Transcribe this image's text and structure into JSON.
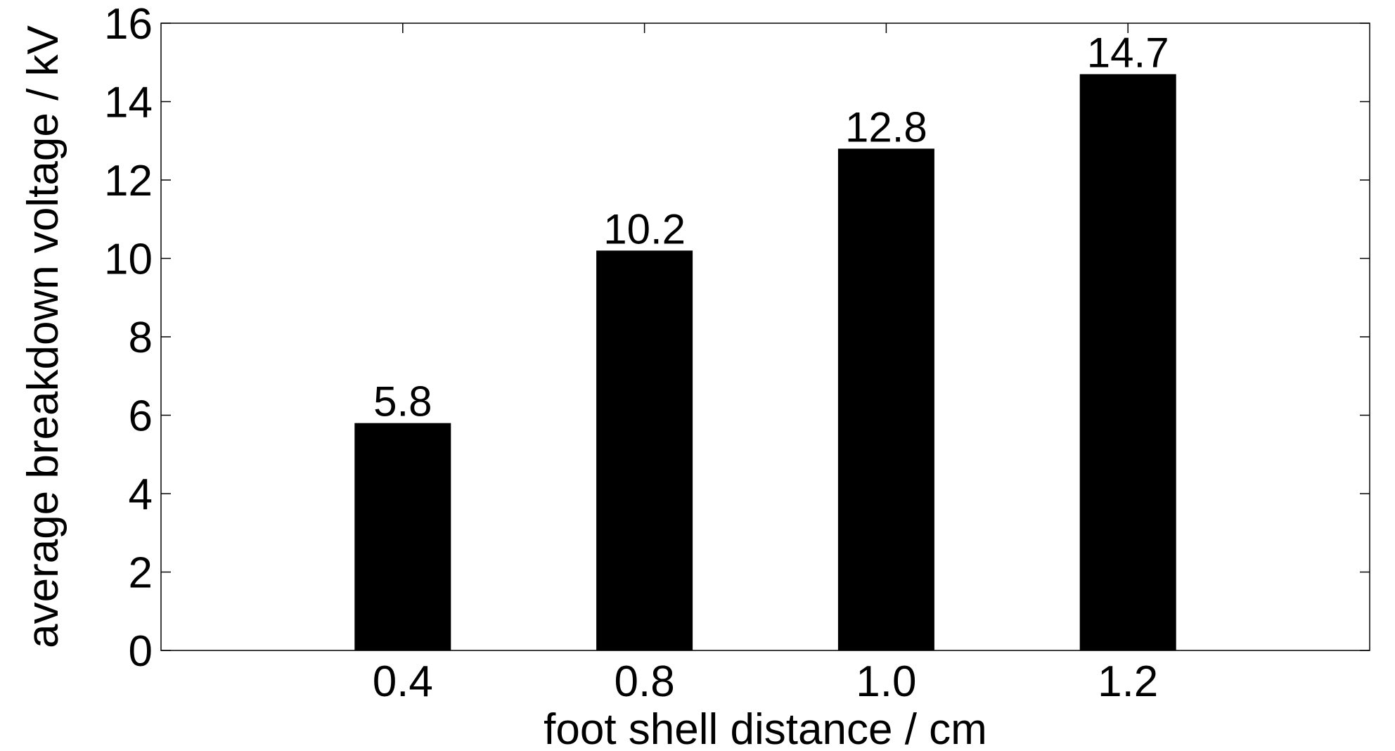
{
  "chart_data": {
    "type": "bar",
    "categories": [
      "0.4",
      "0.8",
      "1.0",
      "1.2"
    ],
    "values": [
      5.8,
      10.2,
      12.8,
      14.7
    ],
    "data_labels": [
      "5.8",
      "10.2",
      "12.8",
      "14.7"
    ],
    "xlabel": "foot shell distance / cm",
    "ylabel": "average breakdown voltage / kV",
    "ylim": [
      0,
      16
    ],
    "yticks": [
      "0",
      "2",
      "4",
      "6",
      "8",
      "10",
      "12",
      "14",
      "16"
    ],
    "grid": false,
    "legend": "none",
    "colors": {
      "bar": "#000000",
      "axis": "#000000",
      "background": "#ffffff"
    }
  }
}
